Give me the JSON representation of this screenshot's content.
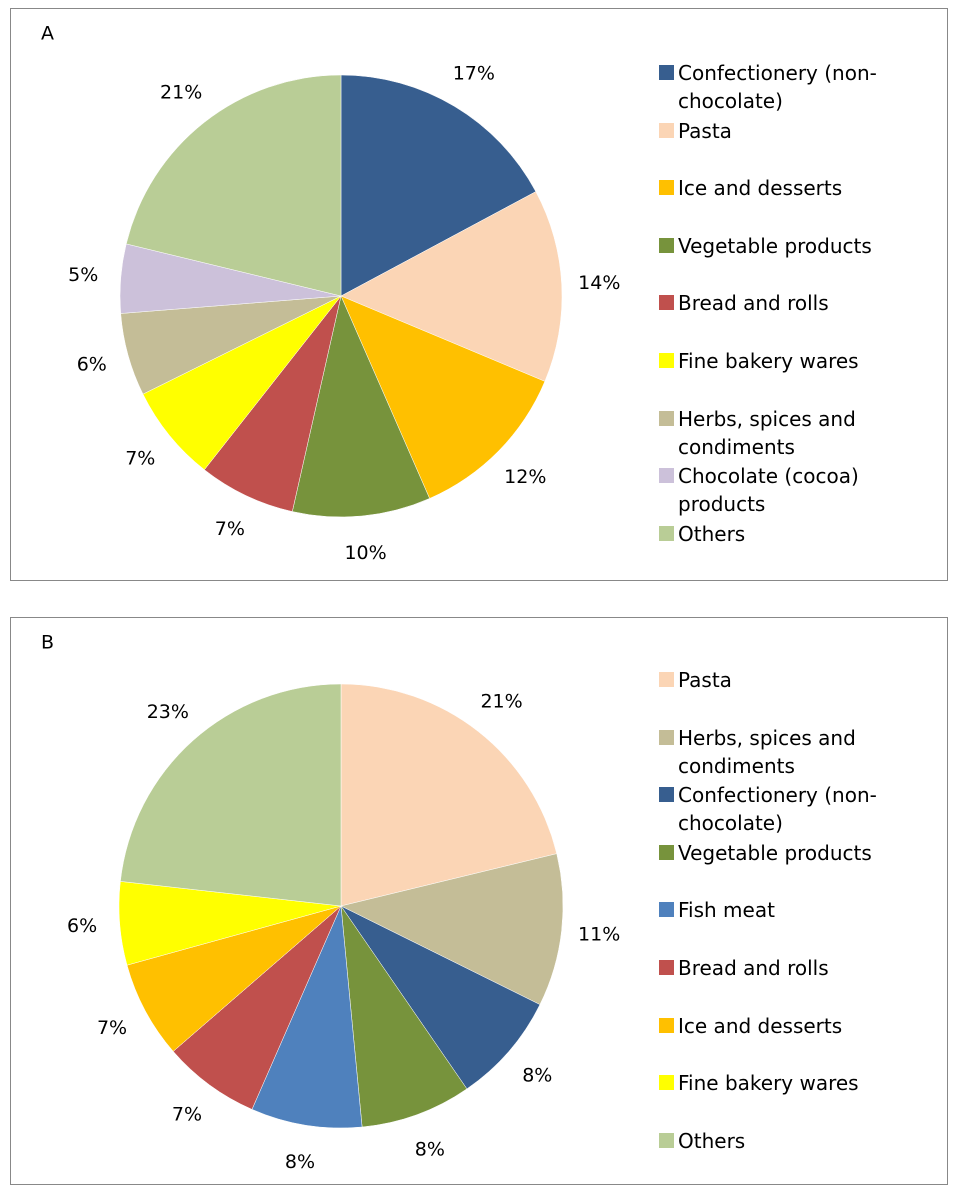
{
  "chart_data": [
    {
      "type": "pie",
      "title": "A",
      "categories": [
        "Confectionery (non-chocolate)",
        "Pasta",
        "Ice and desserts",
        "Vegetable products",
        "Bread and rolls",
        "Fine bakery wares",
        "Herbs, spices and condiments",
        "Chocolate (cocoa) products",
        "Others"
      ],
      "values": [
        17,
        14,
        12,
        10,
        7,
        7,
        6,
        5,
        21
      ],
      "value_labels": [
        "17%",
        "14%",
        "12%",
        "10%",
        "7%",
        "7%",
        "6%",
        "5%",
        "21%"
      ],
      "colors": [
        "#375e8f",
        "#fbd5b5",
        "#ffc000",
        "#77933c",
        "#c0504d",
        "#ffff00",
        "#c4bd97",
        "#ccc1da",
        "#b9cd96"
      ],
      "legend": "right"
    },
    {
      "type": "pie",
      "title": "B",
      "categories": [
        "Pasta",
        "Herbs, spices and condiments",
        "Confectionery (non-chocolate)",
        "Vegetable products",
        "Fish meat",
        "Bread and rolls",
        "Ice and desserts",
        "Fine bakery wares",
        "Others"
      ],
      "values": [
        21,
        11,
        8,
        8,
        8,
        7,
        7,
        6,
        23
      ],
      "value_labels": [
        "21%",
        "11%",
        "8%",
        "8%",
        "8%",
        "7%",
        "7%",
        "6%",
        "23%"
      ],
      "colors": [
        "#fbd5b5",
        "#c4bd97",
        "#375e8f",
        "#77933c",
        "#4f81bd",
        "#c0504d",
        "#ffc000",
        "#ffff00",
        "#b9cd96"
      ],
      "legend": "right"
    }
  ]
}
